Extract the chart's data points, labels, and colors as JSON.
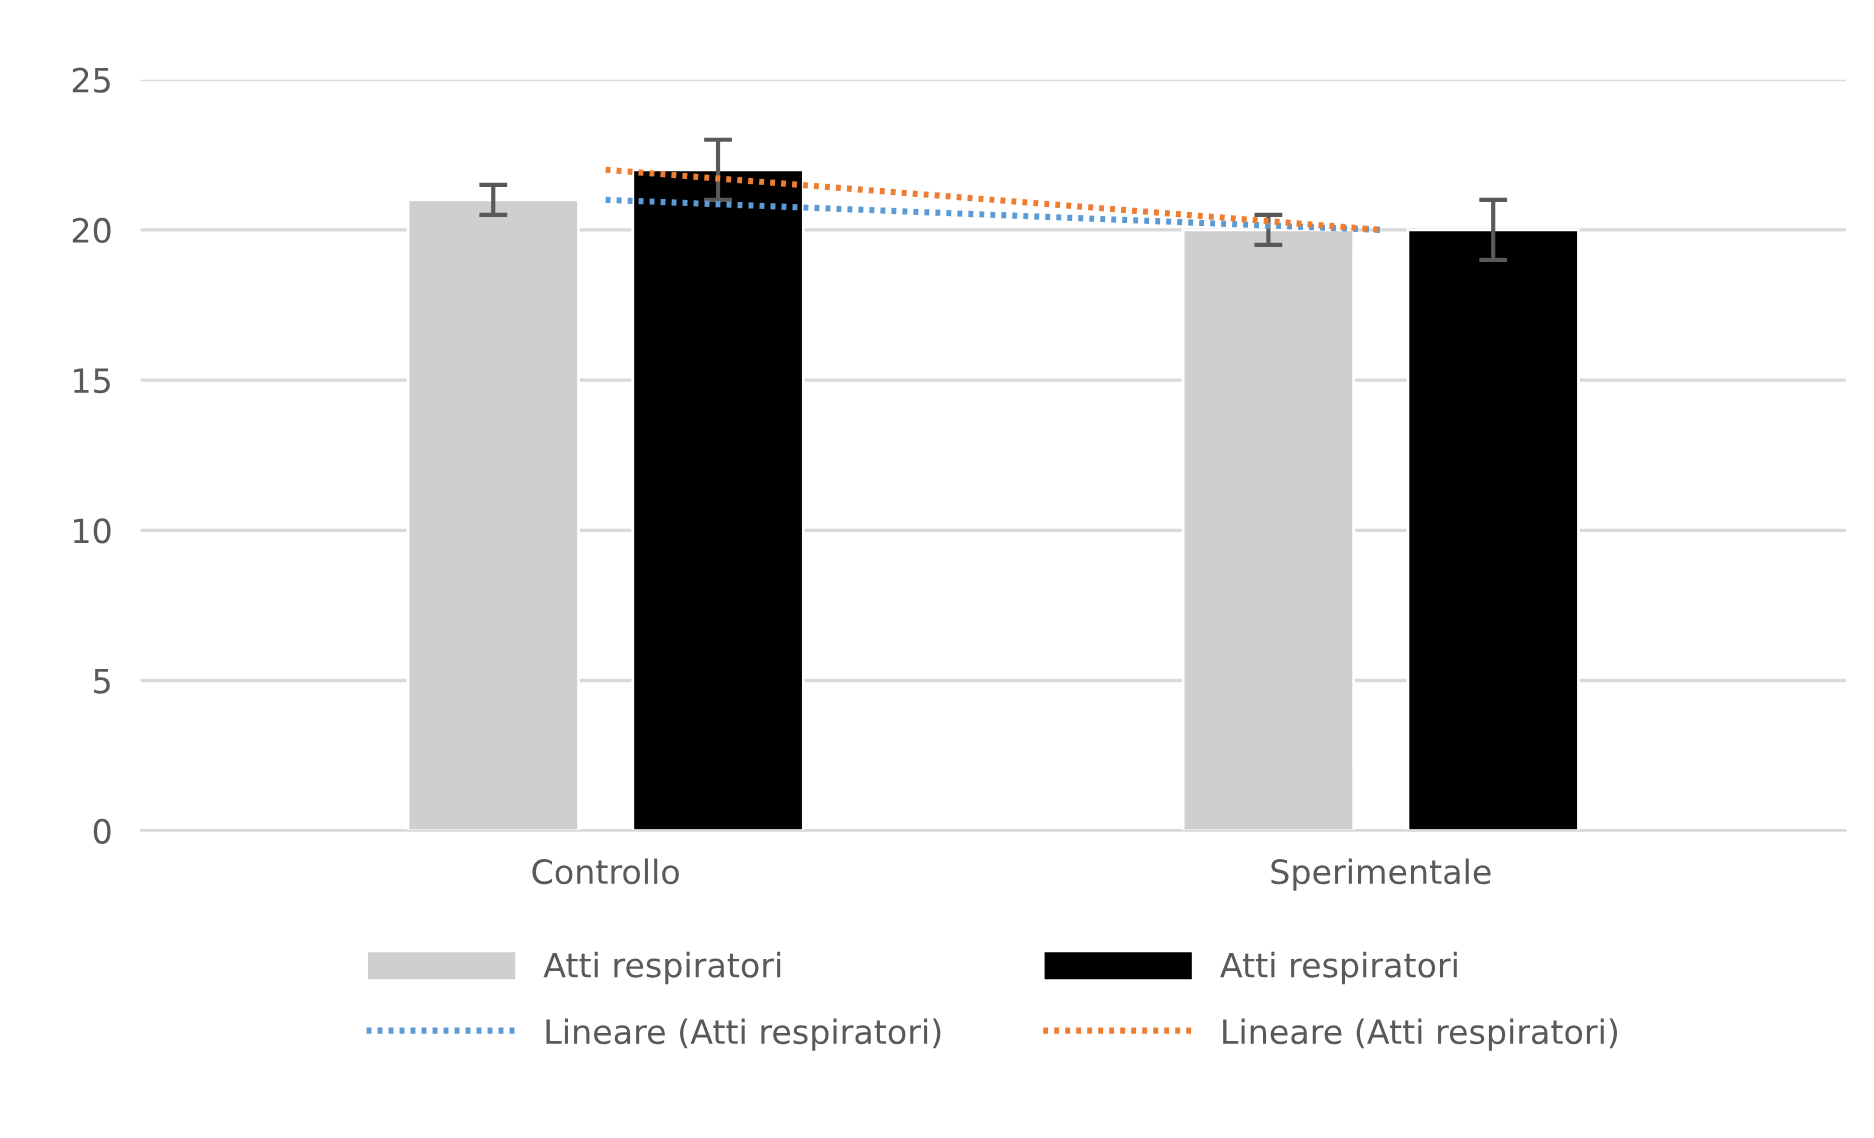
{
  "chart_data": {
    "type": "bar",
    "categories": [
      "Controllo",
      "Sperimentale"
    ],
    "series": [
      {
        "name": "Atti respiratori",
        "color": "#d0cece",
        "values": [
          21,
          20
        ],
        "errors": [
          0.5,
          0.5
        ]
      },
      {
        "name": "Atti respiratori",
        "color": "#000000",
        "values": [
          22,
          20
        ],
        "errors": [
          1,
          1
        ]
      },
      {
        "name": "Lineare (Atti respiratori)",
        "type": "line",
        "line_style": "dotted",
        "color": "#5b9bd5",
        "values": [
          21,
          20
        ]
      },
      {
        "name": "Lineare (Atti respiratori)",
        "type": "line",
        "line_style": "dotted",
        "color": "#ed7d31",
        "values": [
          22,
          20
        ]
      }
    ],
    "ylim": [
      0,
      25
    ],
    "yticks": [
      0,
      5,
      10,
      15,
      20,
      25
    ],
    "grid": "y",
    "legend": "bottom",
    "marker": "none"
  }
}
